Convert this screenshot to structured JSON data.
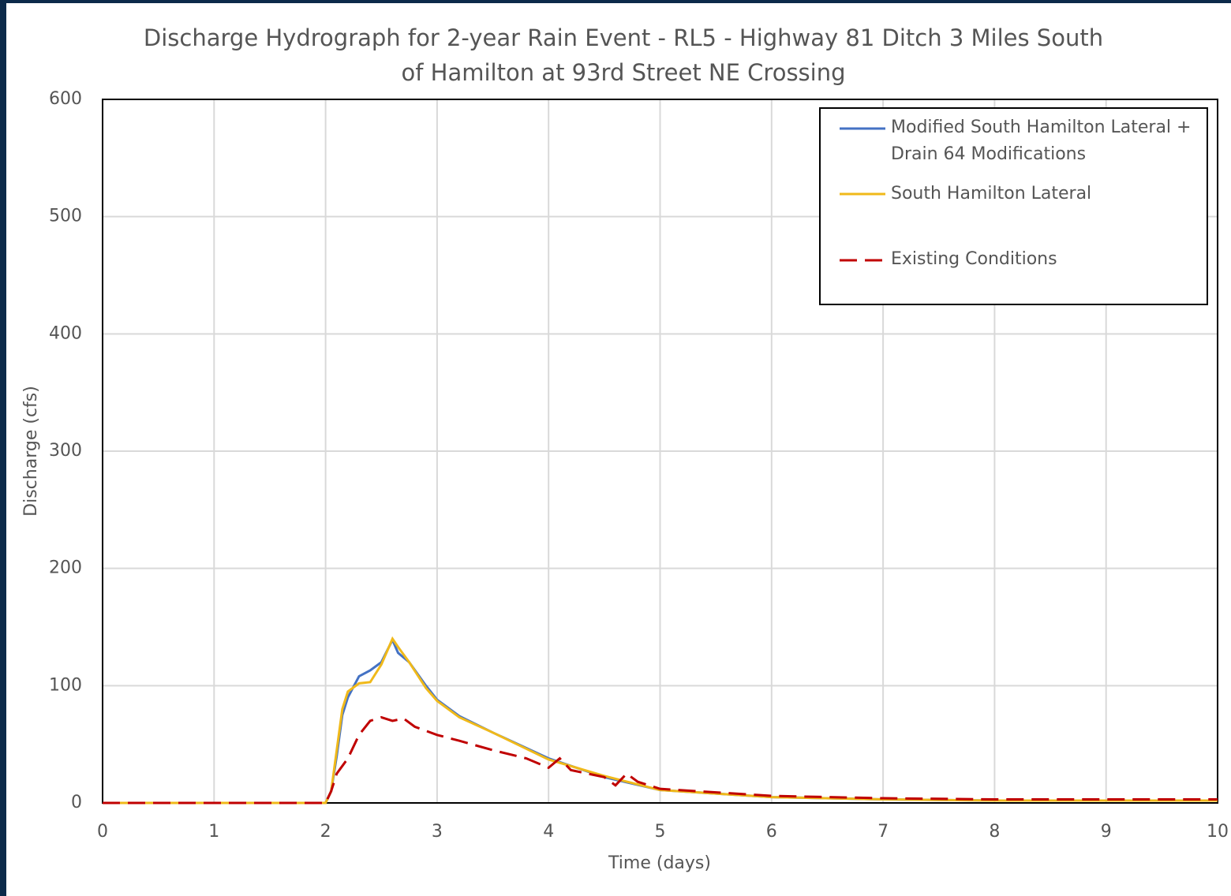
{
  "chart_data": {
    "type": "line",
    "title": "Discharge Hydrograph for 2-year Rain Event - RL5 - Highway 81 Ditch 3 Miles South of Hamilton at 93rd Street NE Crossing",
    "x_label": "Time (days)",
    "y_label": "Discharge (cfs)",
    "xlim": [
      0,
      10
    ],
    "xticks": [
      0,
      1,
      2,
      3,
      4,
      5,
      6,
      7,
      8,
      9,
      10
    ],
    "ylim": [
      0,
      600
    ],
    "yticks": [
      0,
      100,
      200,
      300,
      400,
      500,
      600
    ],
    "grid": true,
    "legend": "upper right",
    "series": [
      {
        "name": "Modified South Hamilton Lateral + Drain 64 Modifications",
        "color": "#4472c4",
        "dashed": false,
        "x": [
          0,
          2,
          2.05,
          2.1,
          2.15,
          2.2,
          2.3,
          2.4,
          2.5,
          2.6,
          2.65,
          2.75,
          2.9,
          3.0,
          3.2,
          3.5,
          4.0,
          4.5,
          5.0,
          6,
          7,
          8,
          9,
          10
        ],
        "values": [
          0,
          0,
          10,
          40,
          75,
          90,
          108,
          113,
          120,
          139,
          128,
          120,
          100,
          88,
          74,
          60,
          38,
          22,
          11,
          5,
          3,
          2,
          2,
          2
        ]
      },
      {
        "name": "South Hamilton Lateral",
        "color": "#f0b91a",
        "dashed": false,
        "x": [
          0,
          2,
          2.05,
          2.1,
          2.15,
          2.2,
          2.3,
          2.4,
          2.5,
          2.6,
          2.65,
          2.75,
          2.9,
          3.0,
          3.2,
          3.5,
          4.0,
          4.5,
          5.0,
          6,
          7,
          8,
          9,
          10
        ],
        "values": [
          0,
          0,
          10,
          45,
          80,
          95,
          102,
          103,
          118,
          140,
          133,
          120,
          98,
          87,
          73,
          60,
          37,
          23,
          11,
          5,
          3,
          2,
          2,
          2
        ]
      },
      {
        "name": "Existing Conditions",
        "color": "#c00000",
        "dashed": true,
        "x": [
          0,
          2,
          2.05,
          2.1,
          2.2,
          2.3,
          2.4,
          2.5,
          2.6,
          2.7,
          2.8,
          3.0,
          3.2,
          3.5,
          3.8,
          4.0,
          4.1,
          4.2,
          4.5,
          4.6,
          4.7,
          4.8,
          5.0,
          6,
          7,
          8,
          9,
          10
        ],
        "values": [
          0,
          0,
          10,
          25,
          38,
          58,
          70,
          73,
          70,
          72,
          65,
          58,
          53,
          45,
          38,
          30,
          38,
          28,
          22,
          15,
          25,
          18,
          12,
          6,
          4,
          3,
          3,
          3
        ]
      }
    ]
  }
}
